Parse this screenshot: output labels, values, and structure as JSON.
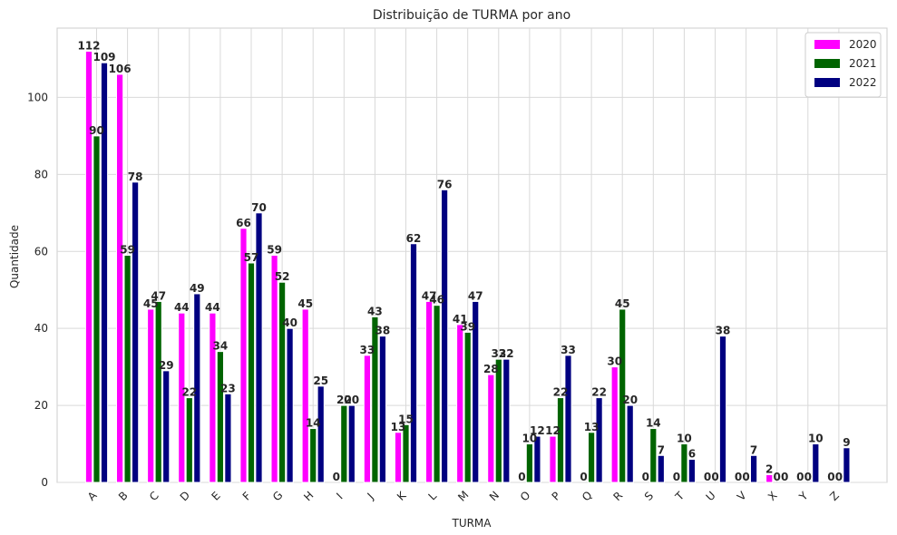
{
  "chart_data": {
    "type": "bar",
    "title": "Distribuição de TURMA por ano",
    "xlabel": "TURMA",
    "ylabel": "Quantidade",
    "categories": [
      "A",
      "B",
      "C",
      "D",
      "E",
      "F",
      "G",
      "H",
      "I",
      "J",
      "K",
      "L",
      "M",
      "N",
      "O",
      "P",
      "Q",
      "R",
      "S",
      "T",
      "U",
      "V",
      "X",
      "Y",
      "Z"
    ],
    "series": [
      {
        "name": "2020",
        "color": "#ff00ff",
        "values": [
          112,
          106,
          45,
          44,
          44,
          66,
          59,
          45,
          0,
          33,
          13,
          47,
          41,
          28,
          0,
          12,
          0,
          30,
          0,
          0,
          0,
          0,
          2,
          0,
          0
        ]
      },
      {
        "name": "2021",
        "color": "#006400",
        "values": [
          90,
          59,
          47,
          22,
          34,
          57,
          52,
          14,
          20,
          43,
          15,
          46,
          39,
          32,
          10,
          22,
          13,
          45,
          14,
          10,
          0,
          0,
          0,
          0,
          0
        ]
      },
      {
        "name": "2022",
        "color": "#000080",
        "values": [
          109,
          78,
          29,
          49,
          23,
          70,
          40,
          25,
          20,
          38,
          62,
          76,
          47,
          32,
          12,
          33,
          22,
          20,
          7,
          6,
          38,
          7,
          0,
          10,
          9
        ]
      }
    ],
    "ylim": [
      0,
      118
    ],
    "yticks": [
      0,
      20,
      40,
      60,
      80,
      100
    ],
    "grid": true,
    "legend_position": "top-right"
  }
}
